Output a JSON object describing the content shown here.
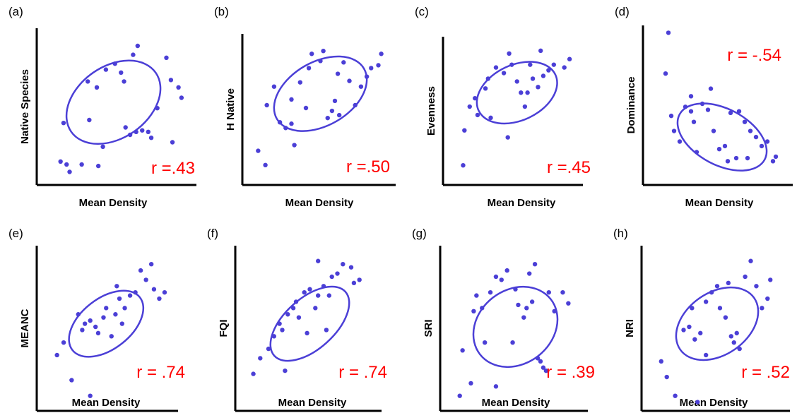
{
  "colors": {
    "axis": "#000000",
    "points": "#4b3fd6",
    "ellipse": "#4b3fd6",
    "r_text": "#ff0000"
  },
  "chart_data": [
    {
      "type": "scatter",
      "panel_label": "(a)",
      "ylabel": "Native Species",
      "xlabel": "Mean Density",
      "r_label": "r =.43",
      "xlim": [
        0,
        1
      ],
      "ylim": [
        0,
        1
      ],
      "ellipse": {
        "cx": 0.47,
        "cy": 0.52,
        "rx": 0.55,
        "ry": 0.39,
        "angle": -35
      },
      "points": [
        [
          0.12,
          0.12
        ],
        [
          0.16,
          0.1
        ],
        [
          0.18,
          0.05
        ],
        [
          0.26,
          0.1
        ],
        [
          0.37,
          0.09
        ],
        [
          0.14,
          0.38
        ],
        [
          0.31,
          0.4
        ],
        [
          0.3,
          0.66
        ],
        [
          0.36,
          0.62
        ],
        [
          0.42,
          0.74
        ],
        [
          0.48,
          0.78
        ],
        [
          0.52,
          0.72
        ],
        [
          0.55,
          0.35
        ],
        [
          0.58,
          0.3
        ],
        [
          0.62,
          0.32
        ],
        [
          0.66,
          0.33
        ],
        [
          0.7,
          0.32
        ],
        [
          0.72,
          0.28
        ],
        [
          0.76,
          0.48
        ],
        [
          0.6,
          0.84
        ],
        [
          0.63,
          0.9
        ],
        [
          0.82,
          0.82
        ],
        [
          0.85,
          0.67
        ],
        [
          0.9,
          0.62
        ],
        [
          0.92,
          0.55
        ],
        [
          0.86,
          0.25
        ],
        [
          0.54,
          0.66
        ],
        [
          0.4,
          0.22
        ]
      ]
    },
    {
      "type": "scatter",
      "panel_label": "(b)",
      "ylabel": "H Native",
      "xlabel": "Mean Density",
      "r_label": "r =.50",
      "xlim": [
        0,
        1
      ],
      "ylim": [
        0,
        1
      ],
      "ellipse": {
        "cx": 0.5,
        "cy": 0.6,
        "rx": 0.56,
        "ry": 0.36,
        "angle": -30
      },
      "points": [
        [
          0.07,
          0.2
        ],
        [
          0.12,
          0.1
        ],
        [
          0.13,
          0.52
        ],
        [
          0.18,
          0.65
        ],
        [
          0.22,
          0.4
        ],
        [
          0.26,
          0.36
        ],
        [
          0.3,
          0.39
        ],
        [
          0.3,
          0.56
        ],
        [
          0.32,
          0.24
        ],
        [
          0.36,
          0.68
        ],
        [
          0.42,
          0.78
        ],
        [
          0.44,
          0.88
        ],
        [
          0.5,
          0.83
        ],
        [
          0.52,
          0.9
        ],
        [
          0.55,
          0.43
        ],
        [
          0.58,
          0.48
        ],
        [
          0.6,
          0.55
        ],
        [
          0.62,
          0.74
        ],
        [
          0.66,
          0.82
        ],
        [
          0.7,
          0.69
        ],
        [
          0.74,
          0.52
        ],
        [
          0.78,
          0.65
        ],
        [
          0.82,
          0.72
        ],
        [
          0.85,
          0.78
        ],
        [
          0.9,
          0.8
        ],
        [
          0.92,
          0.88
        ],
        [
          0.63,
          0.45
        ],
        [
          0.4,
          0.5
        ]
      ]
    },
    {
      "type": "scatter",
      "panel_label": "(c)",
      "ylabel": "Evenness",
      "xlabel": "Mean Density",
      "r_label": "r =.45",
      "xlim": [
        0,
        1
      ],
      "ylim": [
        0,
        1
      ],
      "ellipse": {
        "cx": 0.52,
        "cy": 0.62,
        "rx": 0.52,
        "ry": 0.32,
        "angle": -25
      },
      "points": [
        [
          0.11,
          0.1
        ],
        [
          0.12,
          0.35
        ],
        [
          0.16,
          0.52
        ],
        [
          0.2,
          0.58
        ],
        [
          0.28,
          0.65
        ],
        [
          0.3,
          0.72
        ],
        [
          0.32,
          0.44
        ],
        [
          0.36,
          0.8
        ],
        [
          0.42,
          0.76
        ],
        [
          0.46,
          0.9
        ],
        [
          0.48,
          0.82
        ],
        [
          0.52,
          0.7
        ],
        [
          0.55,
          0.62
        ],
        [
          0.58,
          0.52
        ],
        [
          0.6,
          0.62
        ],
        [
          0.64,
          0.72
        ],
        [
          0.68,
          0.66
        ],
        [
          0.72,
          0.74
        ],
        [
          0.76,
          0.78
        ],
        [
          0.8,
          0.82
        ],
        [
          0.88,
          0.8
        ],
        [
          0.92,
          0.86
        ],
        [
          0.62,
          0.82
        ],
        [
          0.45,
          0.3
        ],
        [
          0.22,
          0.46
        ],
        [
          0.7,
          0.92
        ]
      ]
    },
    {
      "type": "scatter",
      "panel_label": "(d)",
      "ylabel": "Dominance",
      "xlabel": "Mean Density",
      "r_label": "r = -.54",
      "xlim": [
        0,
        1
      ],
      "ylim": [
        0,
        1
      ],
      "ellipse": {
        "cx": 0.52,
        "cy": 0.28,
        "rx": 0.55,
        "ry": 0.3,
        "angle": 28
      },
      "points": [
        [
          0.14,
          0.97
        ],
        [
          0.12,
          0.7
        ],
        [
          0.16,
          0.42
        ],
        [
          0.18,
          0.32
        ],
        [
          0.22,
          0.25
        ],
        [
          0.26,
          0.48
        ],
        [
          0.3,
          0.45
        ],
        [
          0.32,
          0.38
        ],
        [
          0.38,
          0.5
        ],
        [
          0.42,
          0.46
        ],
        [
          0.46,
          0.32
        ],
        [
          0.5,
          0.2
        ],
        [
          0.54,
          0.22
        ],
        [
          0.56,
          0.12
        ],
        [
          0.62,
          0.14
        ],
        [
          0.64,
          0.45
        ],
        [
          0.68,
          0.38
        ],
        [
          0.72,
          0.32
        ],
        [
          0.76,
          0.28
        ],
        [
          0.8,
          0.22
        ],
        [
          0.84,
          0.25
        ],
        [
          0.88,
          0.12
        ],
        [
          0.9,
          0.15
        ],
        [
          0.34,
          0.18
        ],
        [
          0.44,
          0.6
        ],
        [
          0.58,
          0.44
        ],
        [
          0.3,
          0.55
        ],
        [
          0.7,
          0.14
        ]
      ]
    },
    {
      "type": "scatter",
      "panel_label": "(e)",
      "ylabel": "MEANC",
      "xlabel": "Mean Density",
      "r_label": "r = .74",
      "xlim": [
        0,
        1
      ],
      "ylim": [
        0,
        1
      ],
      "ellipse": {
        "cx": 0.48,
        "cy": 0.52,
        "rx": 0.52,
        "ry": 0.26,
        "angle": -38
      },
      "points": [
        [
          0.11,
          0.32
        ],
        [
          0.16,
          0.4
        ],
        [
          0.22,
          0.16
        ],
        [
          0.3,
          0.48
        ],
        [
          0.32,
          0.52
        ],
        [
          0.36,
          0.54
        ],
        [
          0.4,
          0.5
        ],
        [
          0.42,
          0.46
        ],
        [
          0.46,
          0.56
        ],
        [
          0.48,
          0.62
        ],
        [
          0.52,
          0.44
        ],
        [
          0.55,
          0.58
        ],
        [
          0.58,
          0.68
        ],
        [
          0.62,
          0.62
        ],
        [
          0.66,
          0.7
        ],
        [
          0.7,
          0.72
        ],
        [
          0.74,
          0.86
        ],
        [
          0.78,
          0.8
        ],
        [
          0.82,
          0.9
        ],
        [
          0.84,
          0.74
        ],
        [
          0.88,
          0.68
        ],
        [
          0.92,
          0.72
        ],
        [
          0.56,
          0.76
        ],
        [
          0.6,
          0.52
        ],
        [
          0.27,
          0.58
        ],
        [
          0.36,
          0.06
        ]
      ]
    },
    {
      "type": "scatter",
      "panel_label": "(f)",
      "ylabel": "FQI",
      "xlabel": "Mean Density",
      "r_label": "r = .74",
      "xlim": [
        0,
        1
      ],
      "ylim": [
        0,
        1
      ],
      "ellipse": {
        "cx": 0.5,
        "cy": 0.52,
        "rx": 0.56,
        "ry": 0.26,
        "angle": -42
      },
      "points": [
        [
          0.09,
          0.2
        ],
        [
          0.14,
          0.3
        ],
        [
          0.2,
          0.36
        ],
        [
          0.24,
          0.44
        ],
        [
          0.28,
          0.52
        ],
        [
          0.3,
          0.48
        ],
        [
          0.34,
          0.58
        ],
        [
          0.38,
          0.62
        ],
        [
          0.4,
          0.66
        ],
        [
          0.42,
          0.56
        ],
        [
          0.46,
          0.72
        ],
        [
          0.5,
          0.74
        ],
        [
          0.54,
          0.62
        ],
        [
          0.56,
          0.7
        ],
        [
          0.6,
          0.76
        ],
        [
          0.64,
          0.7
        ],
        [
          0.66,
          0.82
        ],
        [
          0.7,
          0.84
        ],
        [
          0.74,
          0.9
        ],
        [
          0.8,
          0.88
        ],
        [
          0.82,
          0.78
        ],
        [
          0.86,
          0.8
        ],
        [
          0.32,
          0.22
        ],
        [
          0.62,
          0.48
        ],
        [
          0.48,
          0.46
        ],
        [
          0.56,
          0.92
        ]
      ]
    },
    {
      "type": "scatter",
      "panel_label": "(g)",
      "ylabel": "SRI",
      "xlabel": "Mean Density",
      "r_label": "r = .39",
      "xlim": [
        0,
        1
      ],
      "ylim": [
        0,
        1
      ],
      "ellipse": {
        "cx": 0.5,
        "cy": 0.5,
        "rx": 0.52,
        "ry": 0.38,
        "angle": -38
      },
      "points": [
        [
          0.1,
          0.06
        ],
        [
          0.12,
          0.35
        ],
        [
          0.18,
          0.14
        ],
        [
          0.2,
          0.6
        ],
        [
          0.22,
          0.7
        ],
        [
          0.26,
          0.62
        ],
        [
          0.28,
          0.4
        ],
        [
          0.32,
          0.72
        ],
        [
          0.36,
          0.82
        ],
        [
          0.4,
          0.8
        ],
        [
          0.44,
          0.86
        ],
        [
          0.5,
          0.74
        ],
        [
          0.52,
          0.64
        ],
        [
          0.56,
          0.56
        ],
        [
          0.58,
          0.62
        ],
        [
          0.6,
          0.84
        ],
        [
          0.62,
          0.66
        ],
        [
          0.64,
          0.9
        ],
        [
          0.66,
          0.3
        ],
        [
          0.68,
          0.28
        ],
        [
          0.7,
          0.24
        ],
        [
          0.72,
          0.22
        ],
        [
          0.74,
          0.72
        ],
        [
          0.78,
          0.6
        ],
        [
          0.84,
          0.72
        ],
        [
          0.88,
          0.65
        ],
        [
          0.36,
          0.12
        ],
        [
          0.48,
          0.4
        ]
      ]
    },
    {
      "type": "scatter",
      "panel_label": "(h)",
      "ylabel": "NRI",
      "xlabel": "Mean Density",
      "r_label": "r = .52",
      "xlim": [
        0,
        1
      ],
      "ylim": [
        0,
        1
      ],
      "ellipse": {
        "cx": 0.5,
        "cy": 0.52,
        "rx": 0.52,
        "ry": 0.32,
        "angle": -35
      },
      "points": [
        [
          0.1,
          0.28
        ],
        [
          0.14,
          0.18
        ],
        [
          0.2,
          0.06
        ],
        [
          0.26,
          0.48
        ],
        [
          0.3,
          0.5
        ],
        [
          0.32,
          0.62
        ],
        [
          0.34,
          0.42
        ],
        [
          0.38,
          0.46
        ],
        [
          0.42,
          0.66
        ],
        [
          0.46,
          0.72
        ],
        [
          0.5,
          0.76
        ],
        [
          0.52,
          0.62
        ],
        [
          0.56,
          0.56
        ],
        [
          0.6,
          0.44
        ],
        [
          0.62,
          0.4
        ],
        [
          0.64,
          0.46
        ],
        [
          0.66,
          0.36
        ],
        [
          0.7,
          0.82
        ],
        [
          0.74,
          0.92
        ],
        [
          0.78,
          0.76
        ],
        [
          0.82,
          0.62
        ],
        [
          0.86,
          0.68
        ],
        [
          0.88,
          0.8
        ],
        [
          0.42,
          0.32
        ],
        [
          0.58,
          0.78
        ],
        [
          0.36,
          0.02
        ]
      ]
    }
  ]
}
